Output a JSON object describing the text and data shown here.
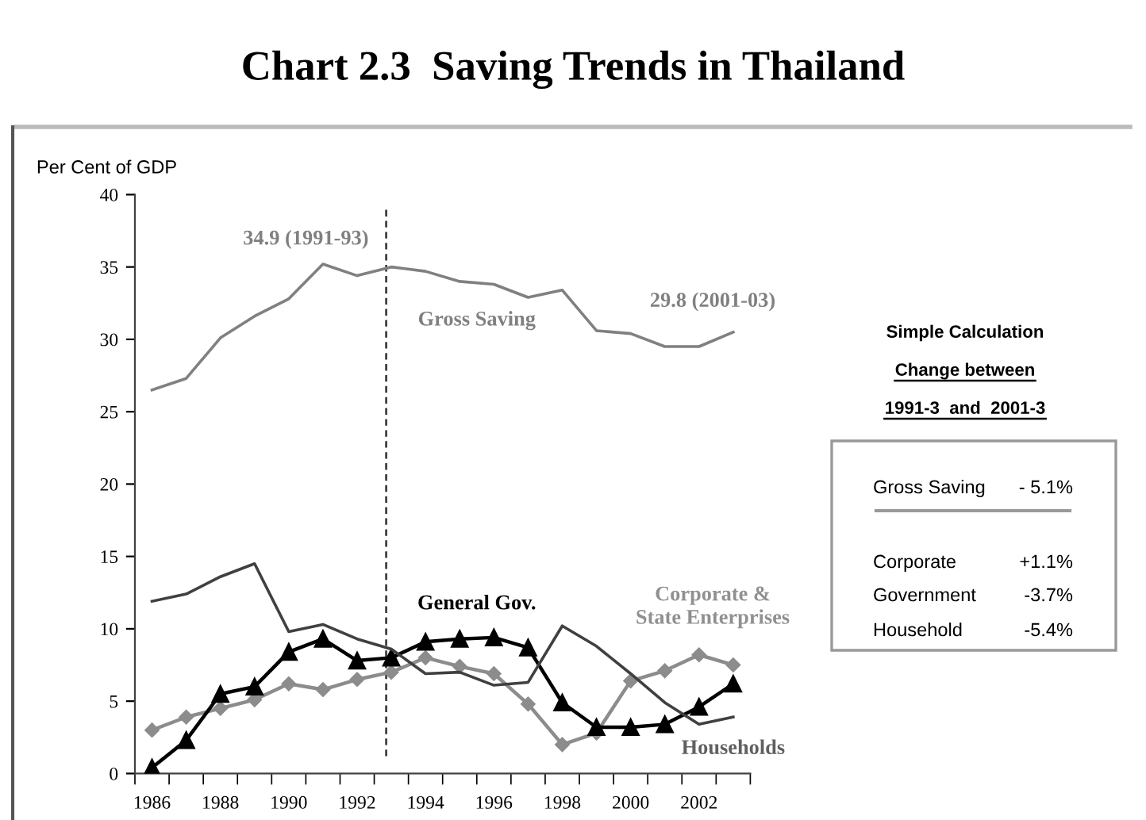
{
  "chart_data": {
    "type": "line",
    "title": "Chart 2.3  Saving Trends in Thailand",
    "ylabel": "Per Cent of GDP",
    "x": [
      1986,
      1987,
      1988,
      1989,
      1990,
      1991,
      1992,
      1993,
      1994,
      1995,
      1996,
      1997,
      1998,
      1999,
      2000,
      2001,
      2002,
      2003
    ],
    "xlim": [
      1985.5,
      2003.5
    ],
    "xticks": [
      1986,
      1988,
      1990,
      1992,
      1994,
      1996,
      1998,
      2000,
      2002
    ],
    "ylim": [
      0,
      40
    ],
    "yticks": [
      0,
      5,
      10,
      15,
      20,
      25,
      30,
      35,
      40
    ],
    "grid": false,
    "series": [
      {
        "name": "Gross Saving",
        "color": "#808080",
        "marker": "none",
        "values": [
          26.5,
          27.3,
          30.1,
          31.6,
          32.8,
          35.2,
          34.4,
          35.0,
          34.7,
          34.0,
          33.8,
          32.9,
          33.4,
          30.6,
          30.4,
          29.5,
          29.5,
          30.5
        ]
      },
      {
        "name": "Households",
        "color": "#404040",
        "marker": "none",
        "values": [
          11.9,
          12.4,
          13.6,
          14.5,
          9.8,
          10.3,
          9.3,
          8.6,
          6.9,
          7.0,
          6.1,
          6.3,
          10.2,
          8.8,
          6.9,
          4.9,
          3.4,
          3.9
        ]
      },
      {
        "name": "General Gov.",
        "color": "#000000",
        "marker": "triangle",
        "values": [
          0.4,
          2.3,
          5.5,
          6.0,
          8.4,
          9.3,
          7.8,
          8.0,
          9.1,
          9.3,
          9.4,
          8.7,
          4.9,
          3.2,
          3.2,
          3.4,
          4.6,
          6.2
        ]
      },
      {
        "name": "Corporate &\nState Enterprises",
        "color": "#8c8c8c",
        "marker": "diamond",
        "values": [
          3.0,
          3.9,
          4.5,
          5.1,
          6.2,
          5.8,
          6.5,
          7.0,
          8.0,
          7.4,
          6.9,
          4.8,
          2.0,
          2.8,
          6.4,
          7.1,
          8.2,
          7.5
        ]
      }
    ],
    "ref_lines": [
      {
        "axis": "x",
        "value": 1992.85,
        "color": "#404040",
        "line_style": "dashed"
      }
    ],
    "annotations": [
      "34.9 (1991-93)",
      "29.8 (2001-03)",
      "Simple Calculation",
      "Change between",
      "1991-3  and  2001-3",
      "Gross Saving",
      "- 5.1%",
      "Corporate",
      "+1.1%",
      "Government",
      "-3.7%",
      "Household",
      "-5.4%"
    ]
  }
}
